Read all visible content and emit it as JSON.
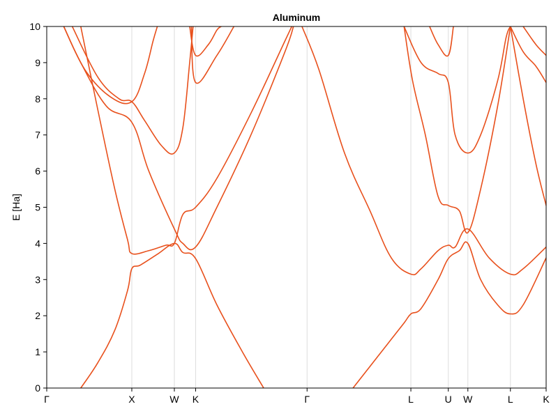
{
  "chart_data": {
    "type": "line",
    "title": "Aluminum",
    "ylabel": "E [Ha]",
    "xlabel": "",
    "ylim": [
      0,
      10
    ],
    "yticks": [
      0,
      1,
      2,
      3,
      4,
      5,
      6,
      7,
      8,
      9,
      10
    ],
    "kpoints": [
      {
        "label": "Γ",
        "x": 0.0
      },
      {
        "label": "X",
        "x": 1.0
      },
      {
        "label": "W",
        "x": 1.5
      },
      {
        "label": "K",
        "x": 1.75
      },
      {
        "label": "Γ",
        "x": 3.06
      },
      {
        "label": "L",
        "x": 4.28
      },
      {
        "label": "U",
        "x": 4.72
      },
      {
        "label": "W",
        "x": 4.95
      },
      {
        "label": "L",
        "x": 5.45
      },
      {
        "label": "K",
        "x": 5.87
      }
    ],
    "xlim": [
      0,
      5.87
    ],
    "grid": "vertical-at-kpoints",
    "line_color": "#e8501c",
    "series": [
      {
        "points": [
          [
            0.4,
            0.0
          ],
          [
            0.6,
            0.7
          ],
          [
            0.8,
            1.6
          ],
          [
            0.95,
            2.7
          ],
          [
            1.0,
            3.3
          ],
          [
            1.1,
            3.4
          ],
          [
            1.3,
            3.7
          ],
          [
            1.5,
            4.0
          ],
          [
            1.6,
            3.75
          ],
          [
            1.75,
            3.58
          ],
          [
            2.0,
            2.3
          ],
          [
            2.3,
            1.0
          ],
          [
            2.55,
            0.0
          ]
        ]
      },
      {
        "points": [
          [
            0.4,
            10.0
          ],
          [
            0.6,
            7.7
          ],
          [
            0.8,
            5.5
          ],
          [
            0.95,
            4.1
          ],
          [
            1.0,
            3.72
          ],
          [
            1.2,
            3.8
          ],
          [
            1.4,
            3.95
          ],
          [
            1.5,
            4.0
          ],
          [
            1.6,
            4.8
          ],
          [
            1.75,
            5.0
          ],
          [
            2.0,
            5.8
          ],
          [
            2.4,
            7.6
          ],
          [
            2.8,
            9.6
          ],
          [
            2.88,
            10.0
          ]
        ]
      },
      {
        "points": [
          [
            0.2,
            10.0
          ],
          [
            0.4,
            9.0
          ],
          [
            0.7,
            7.8
          ],
          [
            1.0,
            7.35
          ],
          [
            1.2,
            6.0
          ],
          [
            1.5,
            4.4
          ],
          [
            1.6,
            4.0
          ],
          [
            1.75,
            3.9
          ],
          [
            2.0,
            5.0
          ],
          [
            2.4,
            7.0
          ],
          [
            2.8,
            9.3
          ],
          [
            2.9,
            10.0
          ]
        ]
      },
      {
        "points": [
          [
            0.3,
            10.0
          ],
          [
            0.6,
            8.6
          ],
          [
            0.85,
            8.0
          ],
          [
            1.0,
            7.92
          ],
          [
            1.15,
            7.4
          ],
          [
            1.35,
            6.7
          ],
          [
            1.5,
            6.5
          ],
          [
            1.6,
            7.2
          ],
          [
            1.68,
            9.0
          ],
          [
            1.72,
            10.0
          ]
        ]
      },
      {
        "points": [
          [
            0.2,
            10.0
          ],
          [
            0.45,
            8.8
          ],
          [
            0.75,
            8.05
          ],
          [
            1.0,
            7.92
          ],
          [
            1.15,
            8.7
          ],
          [
            1.25,
            9.6
          ],
          [
            1.3,
            10.0
          ]
        ]
      },
      {
        "points": [
          [
            1.68,
            10.0
          ],
          [
            1.75,
            9.2
          ],
          [
            1.9,
            9.5
          ],
          [
            2.0,
            9.9
          ],
          [
            2.05,
            10.0
          ]
        ]
      },
      {
        "points": [
          [
            1.7,
            10.0
          ],
          [
            1.75,
            8.45
          ],
          [
            2.0,
            9.2
          ],
          [
            2.2,
            10.0
          ]
        ]
      },
      {
        "points": [
          [
            3.0,
            10.0
          ],
          [
            3.2,
            8.8
          ],
          [
            3.5,
            6.5
          ],
          [
            3.8,
            4.9
          ],
          [
            4.05,
            3.6
          ],
          [
            4.28,
            3.15
          ],
          [
            4.4,
            3.3
          ],
          [
            4.6,
            3.8
          ],
          [
            4.72,
            3.95
          ],
          [
            4.8,
            3.9
          ],
          [
            4.95,
            4.4
          ],
          [
            5.2,
            3.6
          ],
          [
            5.45,
            3.15
          ],
          [
            5.6,
            3.3
          ],
          [
            5.87,
            3.9
          ]
        ]
      },
      {
        "points": [
          [
            3.6,
            0.0
          ],
          [
            3.8,
            0.6
          ],
          [
            4.0,
            1.2
          ],
          [
            4.2,
            1.8
          ],
          [
            4.28,
            2.05
          ],
          [
            4.4,
            2.2
          ],
          [
            4.6,
            3.0
          ],
          [
            4.72,
            3.58
          ],
          [
            4.85,
            3.8
          ],
          [
            4.95,
            4.0
          ],
          [
            5.1,
            3.0
          ],
          [
            5.3,
            2.3
          ],
          [
            5.45,
            2.05
          ],
          [
            5.6,
            2.3
          ],
          [
            5.87,
            3.6
          ]
        ]
      },
      {
        "points": [
          [
            4.2,
            10.0
          ],
          [
            4.3,
            8.5
          ],
          [
            4.45,
            7.0
          ],
          [
            4.6,
            5.3
          ],
          [
            4.72,
            5.05
          ],
          [
            4.85,
            4.9
          ],
          [
            4.95,
            4.3
          ],
          [
            5.1,
            5.5
          ],
          [
            5.3,
            7.8
          ],
          [
            5.45,
            10.0
          ]
        ]
      },
      {
        "points": [
          [
            4.2,
            10.0
          ],
          [
            4.4,
            9.0
          ],
          [
            4.6,
            8.7
          ],
          [
            4.72,
            8.45
          ],
          [
            4.8,
            7.0
          ],
          [
            4.95,
            6.5
          ],
          [
            5.1,
            7.0
          ],
          [
            5.3,
            8.5
          ],
          [
            5.4,
            9.7
          ],
          [
            5.45,
            10.0
          ]
        ]
      },
      {
        "points": [
          [
            4.5,
            10.0
          ],
          [
            4.6,
            9.5
          ],
          [
            4.72,
            9.2
          ],
          [
            4.78,
            10.0
          ]
        ]
      },
      {
        "points": [
          [
            5.45,
            10.0
          ],
          [
            5.6,
            8.0
          ],
          [
            5.75,
            6.2
          ],
          [
            5.87,
            5.05
          ]
        ]
      },
      {
        "points": [
          [
            5.45,
            10.0
          ],
          [
            5.6,
            9.3
          ],
          [
            5.75,
            8.9
          ],
          [
            5.87,
            8.45
          ]
        ]
      },
      {
        "points": [
          [
            5.6,
            10.0
          ],
          [
            5.75,
            9.5
          ],
          [
            5.87,
            9.2
          ]
        ]
      }
    ]
  }
}
